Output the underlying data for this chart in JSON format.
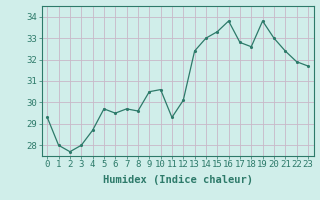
{
  "xlabel": "Humidex (Indice chaleur)",
  "x": [
    0,
    1,
    2,
    3,
    4,
    5,
    6,
    7,
    8,
    9,
    10,
    11,
    12,
    13,
    14,
    15,
    16,
    17,
    18,
    19,
    20,
    21,
    22,
    23
  ],
  "y": [
    29.3,
    28.0,
    27.7,
    28.0,
    28.7,
    29.7,
    29.5,
    29.7,
    29.6,
    30.5,
    30.6,
    29.3,
    30.1,
    32.4,
    33.0,
    33.3,
    33.8,
    32.8,
    32.6,
    33.8,
    33.0,
    32.4,
    31.9,
    31.7
  ],
  "line_color": "#2d7a6a",
  "bg_color": "#d0eeea",
  "grid_color": "#c8b8c8",
  "ylim": [
    27.5,
    34.5
  ],
  "yticks": [
    28,
    29,
    30,
    31,
    32,
    33,
    34
  ],
  "xlim": [
    -0.5,
    23.5
  ],
  "tick_fontsize": 6.5,
  "xlabel_fontsize": 7.5
}
